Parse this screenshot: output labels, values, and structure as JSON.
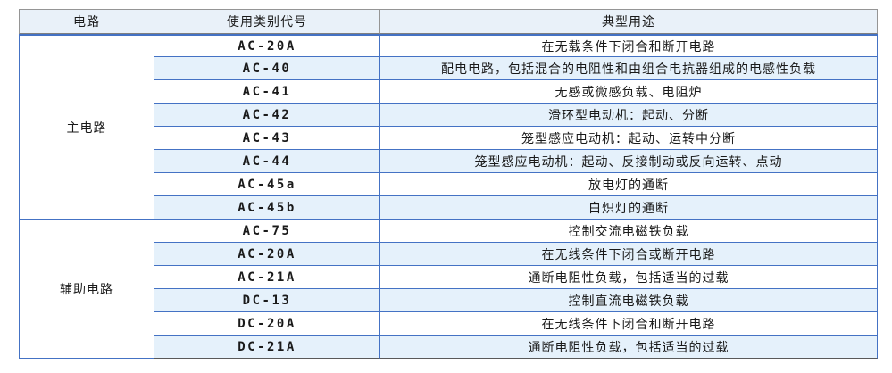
{
  "table": {
    "headers": [
      "电路",
      "使用类别代号",
      "典型用途"
    ],
    "groups": [
      {
        "name": "主电路",
        "rows": [
          {
            "code": "AC-20A",
            "use": "在无载条件下闭合和断开电路"
          },
          {
            "code": "AC-40",
            "use": "配电电路，包括混合的电阻性和由组合电抗器组成的电感性负载"
          },
          {
            "code": "AC-41",
            "use": "无感或微感负载、电阻炉"
          },
          {
            "code": "AC-42",
            "use": "滑环型电动机：起动、分断"
          },
          {
            "code": "AC-43",
            "use": "笼型感应电动机：起动、运转中分断"
          },
          {
            "code": "AC-44",
            "use": "笼型感应电动机：起动、反接制动或反向运转、点动"
          },
          {
            "code": "AC-45a",
            "use": "放电灯的通断"
          },
          {
            "code": "AC-45b",
            "use": "白炽灯的通断"
          }
        ]
      },
      {
        "name": "辅助电路",
        "rows": [
          {
            "code": "AC-75",
            "use": "控制交流电磁铁负载"
          },
          {
            "code": "AC-20A",
            "use": "在无线条件下闭合或断开电路"
          },
          {
            "code": "AC-21A",
            "use": "通断电阻性负载，包括适当的过载"
          },
          {
            "code": "DC-13",
            "use": "控制直流电磁铁负载"
          },
          {
            "code": "DC-20A",
            "use": "在无线条件下闭合和断开电路"
          },
          {
            "code": "DC-21A",
            "use": "通断电阻性负载，包括适当的过载"
          }
        ]
      }
    ]
  },
  "colors": {
    "inner_border_blue": "#4472c4",
    "header_border_grey": "#959595",
    "table_bottom_grey": "#595959",
    "header_background": "#e9f1f9",
    "row_alt_background": "#e5f1fb",
    "text": "#1a1a1a"
  }
}
